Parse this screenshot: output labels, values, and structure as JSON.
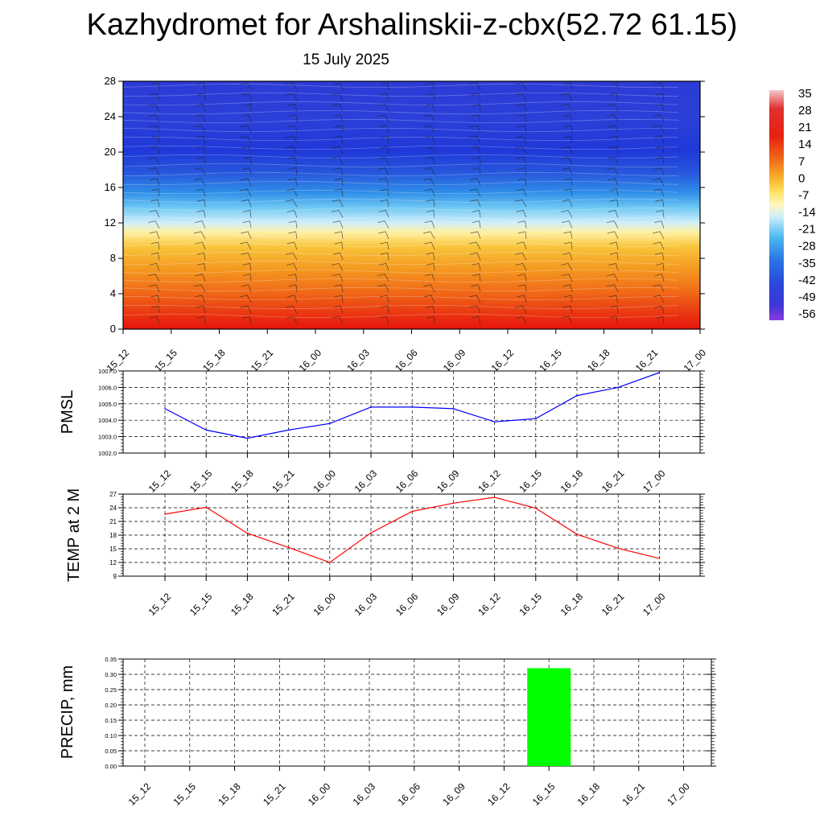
{
  "header": {
    "title": "Kazhydromet for Arshalinskii-z-cbx(52.72 61.15)",
    "subtitle": "15 July 2025"
  },
  "colors": {
    "pmsl_line": "#0000ff",
    "temp_line": "#ff0000",
    "precip_bar": "#00ff00"
  },
  "chart_data": [
    {
      "type": "heatmap",
      "title": "",
      "x_categories": [
        "15_12",
        "15_15",
        "15_18",
        "15_21",
        "16_00",
        "16_03",
        "16_06",
        "16_09",
        "16_12",
        "16_15",
        "16_18",
        "16_21",
        "17_00"
      ],
      "y_ticks": [
        0,
        4,
        8,
        12,
        16,
        20,
        24,
        28
      ],
      "ylim": [
        0,
        28
      ],
      "colorbar_labels": [
        "35",
        "28",
        "21",
        "14",
        "7",
        "0",
        "-7",
        "-14",
        "-21",
        "-28",
        "-35",
        "-42",
        "-49",
        "-56"
      ],
      "temperature_profile_by_height": [
        {
          "y": 0,
          "value": 21
        },
        {
          "y": 2,
          "value": 18
        },
        {
          "y": 4,
          "value": 14
        },
        {
          "y": 6,
          "value": 9
        },
        {
          "y": 8,
          "value": 4
        },
        {
          "y": 10,
          "value": -2
        },
        {
          "y": 12,
          "value": -10
        },
        {
          "y": 13,
          "value": -14
        },
        {
          "y": 14,
          "value": -22
        },
        {
          "y": 16,
          "value": -34
        },
        {
          "y": 18,
          "value": -44
        },
        {
          "y": 20,
          "value": -50
        },
        {
          "y": 24,
          "value": -53
        },
        {
          "y": 28,
          "value": -55
        }
      ],
      "wind_barbs": true
    },
    {
      "type": "line",
      "ylabel": "PMSL",
      "categories": [
        "15_12",
        "15_15",
        "15_18",
        "15_21",
        "16_00",
        "16_03",
        "16_06",
        "16_09",
        "16_12",
        "16_15",
        "16_18",
        "16_21",
        "17_00"
      ],
      "values": [
        1004.7,
        1003.4,
        1002.9,
        1003.4,
        1003.8,
        1004.8,
        1004.8,
        1004.7,
        1003.9,
        1004.1,
        1005.5,
        1006.0,
        1006.9
      ],
      "ylim": [
        1002.0,
        1007.0
      ],
      "y_tick_labels": [
        "1002.0",
        "1003.0",
        "1004.0",
        "1005.0",
        "1006.0",
        "1007.0"
      ],
      "grid": true
    },
    {
      "type": "line",
      "ylabel": "TEMP at 2 M",
      "categories": [
        "15_12",
        "15_15",
        "15_18",
        "15_21",
        "16_00",
        "16_03",
        "16_06",
        "16_09",
        "16_12",
        "16_15",
        "16_18",
        "16_21",
        "17_00"
      ],
      "values": [
        22.6,
        24.1,
        18.4,
        15.3,
        12.0,
        18.5,
        23.2,
        25.0,
        26.3,
        23.9,
        18.2,
        15.1,
        12.9
      ],
      "ylim": [
        9,
        27
      ],
      "y_tick_labels": [
        "9",
        "12",
        "15",
        "18",
        "21",
        "24",
        "27"
      ],
      "grid": true
    },
    {
      "type": "bar",
      "ylabel": "PRECIP, mm",
      "categories": [
        "15_12",
        "15_15",
        "15_18",
        "15_21",
        "16_00",
        "16_03",
        "16_06",
        "16_09",
        "16_12",
        "16_15",
        "16_18",
        "16_21",
        "17_00"
      ],
      "values": [
        0,
        0,
        0,
        0,
        0,
        0,
        0,
        0,
        0,
        0.32,
        0,
        0,
        0
      ],
      "ylim": [
        0,
        0.35
      ],
      "y_tick_labels": [
        "0.00",
        "0.05",
        "0.10",
        "0.15",
        "0.20",
        "0.25",
        "0.30",
        "0.35"
      ],
      "grid": true
    }
  ]
}
